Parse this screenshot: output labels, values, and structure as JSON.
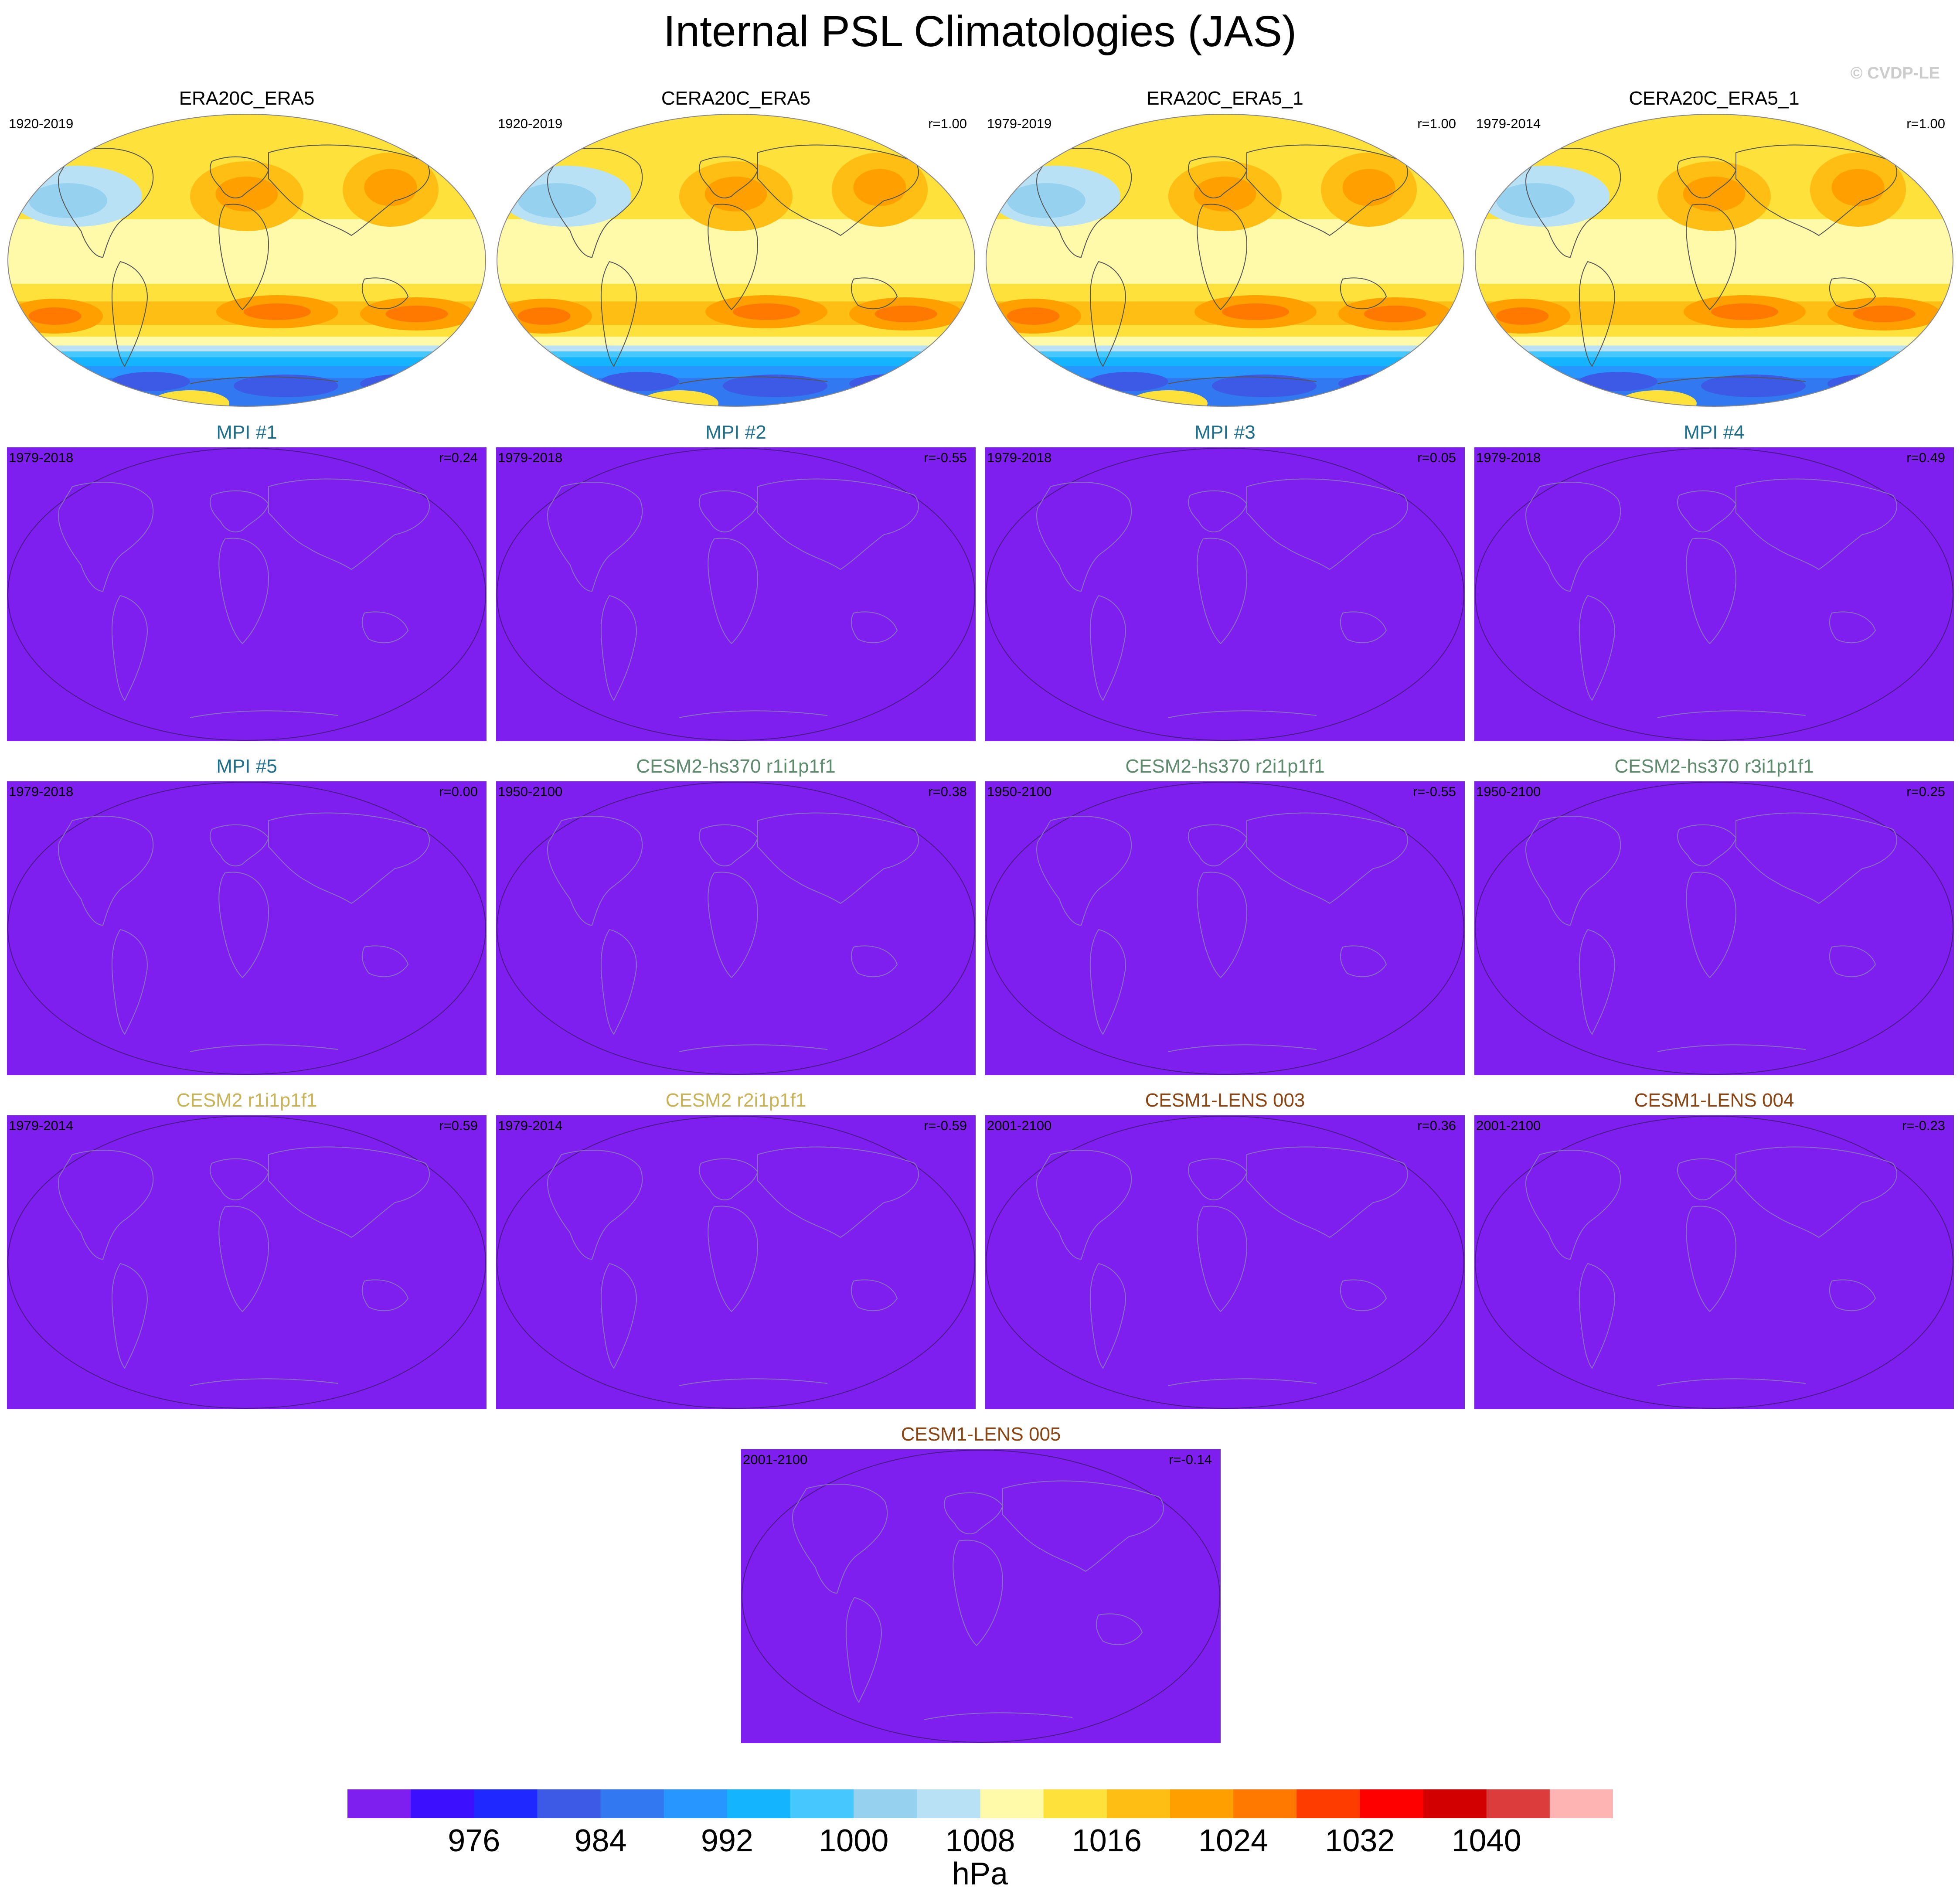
{
  "title": "Internal PSL Climatologies (JAS)",
  "watermark": "© CVDP-LE",
  "colors": {
    "obs_title": "#000000",
    "MPI": "#1f6f8b",
    "CESM2-hs370": "#5e8a6e",
    "CESM2": "#c8b456",
    "CESM1-LENS": "#8b4513",
    "model_fill": "#7f1fef",
    "coast": "#8a6fc0"
  },
  "colorbar": {
    "colors": [
      "#7f1fef",
      "#3c10ff",
      "#1e28ff",
      "#3c5ae6",
      "#3278f0",
      "#2896ff",
      "#14b4ff",
      "#46c8ff",
      "#96d2f0",
      "#b9e1f5",
      "#fffaaa",
      "#ffe13c",
      "#ffbe14",
      "#ffa000",
      "#ff7800",
      "#ff3c00",
      "#ff0000",
      "#d20000",
      "#dc3c3c",
      "#ffb4b4"
    ],
    "labels": [
      "976",
      "984",
      "992",
      "1000",
      "1008",
      "1016",
      "1024",
      "1032",
      "1040"
    ],
    "units": "hPa"
  },
  "chart_data": {
    "type": "heatmap",
    "variable": "PSL",
    "season": "JAS",
    "panels": [
      {
        "title": "ERA20C_ERA5",
        "group": "obs",
        "years": "1920-2019",
        "r": ""
      },
      {
        "title": "CERA20C_ERA5",
        "group": "obs",
        "years": "1920-2019",
        "r": "r=1.00"
      },
      {
        "title": "ERA20C_ERA5_1",
        "group": "obs",
        "years": "1979-2019",
        "r": "r=1.00"
      },
      {
        "title": "CERA20C_ERA5_1",
        "group": "obs",
        "years": "1979-2014",
        "r": "r=1.00"
      },
      {
        "title": "MPI #1",
        "group": "MPI",
        "years": "1979-2018",
        "r": "r=0.24"
      },
      {
        "title": "MPI #2",
        "group": "MPI",
        "years": "1979-2018",
        "r": "r=-0.55"
      },
      {
        "title": "MPI #3",
        "group": "MPI",
        "years": "1979-2018",
        "r": "r=0.05"
      },
      {
        "title": "MPI #4",
        "group": "MPI",
        "years": "1979-2018",
        "r": "r=0.49"
      },
      {
        "title": "MPI #5",
        "group": "MPI",
        "years": "1979-2018",
        "r": "r=0.00"
      },
      {
        "title": "CESM2-hs370 r1i1p1f1",
        "group": "CESM2-hs370",
        "years": "1950-2100",
        "r": "r=0.38"
      },
      {
        "title": "CESM2-hs370 r2i1p1f1",
        "group": "CESM2-hs370",
        "years": "1950-2100",
        "r": "r=-0.55"
      },
      {
        "title": "CESM2-hs370 r3i1p1f1",
        "group": "CESM2-hs370",
        "years": "1950-2100",
        "r": "r=0.25"
      },
      {
        "title": "CESM2 r1i1p1f1",
        "group": "CESM2",
        "years": "1979-2014",
        "r": "r=0.59"
      },
      {
        "title": "CESM2 r2i1p1f1",
        "group": "CESM2",
        "years": "1979-2014",
        "r": "r=-0.59"
      },
      {
        "title": "CESM1-LENS 003",
        "group": "CESM1-LENS",
        "years": "2001-2100",
        "r": "r=0.36"
      },
      {
        "title": "CESM1-LENS 004",
        "group": "CESM1-LENS",
        "years": "2001-2100",
        "r": "r=-0.23"
      },
      {
        "title": "CESM1-LENS 005",
        "group": "CESM1-LENS",
        "years": "2001-2100",
        "r": "r=-0.14"
      }
    ]
  }
}
